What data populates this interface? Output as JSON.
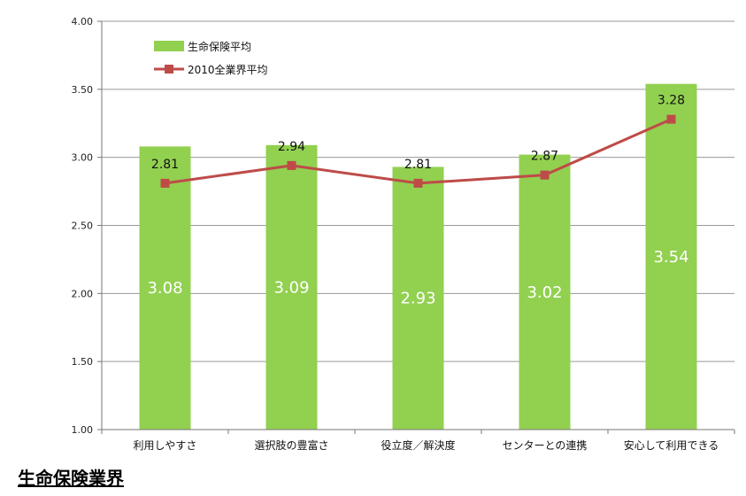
{
  "chart_data": {
    "type": "bar",
    "categories": [
      "利用しやすさ",
      "選択肢の豊富さ",
      "役立度／解決度",
      "センターとの連携",
      "安心して利用できる"
    ],
    "series": [
      {
        "name": "生命保険平均",
        "type": "bar",
        "color": "#92d050",
        "values": [
          3.08,
          3.09,
          2.93,
          3.02,
          3.54
        ],
        "labels": [
          "3.08",
          "3.09",
          "2.93",
          "3.02",
          "3.54"
        ]
      },
      {
        "name": "2010全業界平均",
        "type": "line",
        "color": "#be4b48",
        "values": [
          2.81,
          2.94,
          2.81,
          2.87,
          3.28
        ],
        "labels": [
          "2.81",
          "2.94",
          "2.81",
          "2.87",
          "3.28"
        ]
      }
    ],
    "ylim": [
      1.0,
      4.0
    ],
    "yticks": [
      "1.00",
      "1.50",
      "2.00",
      "2.50",
      "3.00",
      "3.50",
      "4.00"
    ],
    "grid": true,
    "legend": "top-left",
    "xlabel": "",
    "ylabel": ""
  },
  "caption": "生命保険業界"
}
